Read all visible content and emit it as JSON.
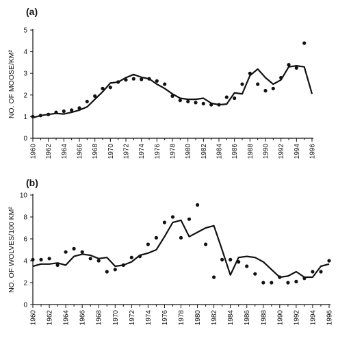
{
  "chart_data": [
    {
      "panel_label": "(a)",
      "type": "line",
      "ylabel": "NO. OF MOOSE/KM²",
      "xlabel": "",
      "xlim": [
        1960,
        1996
      ],
      "ylim": [
        0,
        5
      ],
      "yticks": [
        "0",
        "1",
        "2",
        "3",
        "4",
        "5"
      ],
      "xticks": [
        "1960",
        "1962",
        "1964",
        "1966",
        "1968",
        "1970",
        "1972",
        "1974",
        "1976",
        "1978",
        "1980",
        "1982",
        "1984",
        "1986",
        "1988",
        "1990",
        "1992",
        "1994",
        "1996"
      ],
      "grid": false,
      "legend": "none",
      "series": [
        {
          "style": "line",
          "x": [
            1960,
            1961,
            1962,
            1963,
            1964,
            1965,
            1966,
            1967,
            1968,
            1969,
            1970,
            1971,
            1972,
            1973,
            1974,
            1975,
            1976,
            1977,
            1978,
            1979,
            1980,
            1981,
            1982,
            1983,
            1984,
            1985,
            1986,
            1987,
            1988,
            1989,
            1990,
            1991,
            1992,
            1993,
            1994,
            1995,
            1996
          ],
          "y": [
            0.95,
            1.05,
            1.1,
            1.15,
            1.12,
            1.2,
            1.3,
            1.45,
            1.8,
            2.15,
            2.55,
            2.6,
            2.8,
            2.95,
            2.82,
            2.75,
            2.5,
            2.3,
            2.05,
            1.85,
            1.8,
            1.8,
            1.85,
            1.62,
            1.55,
            1.58,
            2.1,
            2.05,
            2.9,
            3.2,
            2.8,
            2.5,
            2.7,
            3.3,
            3.35,
            3.3,
            2.05
          ]
        },
        {
          "style": "points",
          "x": [
            1960,
            1961,
            1962,
            1963,
            1964,
            1965,
            1966,
            1967,
            1968,
            1969,
            1970,
            1971,
            1972,
            1973,
            1974,
            1975,
            1976,
            1977,
            1978,
            1979,
            1980,
            1981,
            1982,
            1983,
            1984,
            1985,
            1986,
            1987,
            1988,
            1989,
            1990,
            1991,
            1992,
            1993,
            1994,
            1995
          ],
          "y": [
            1.0,
            1.05,
            1.1,
            1.2,
            1.25,
            1.3,
            1.4,
            1.7,
            1.95,
            2.3,
            2.35,
            2.6,
            2.7,
            2.75,
            2.72,
            2.75,
            2.65,
            2.5,
            1.95,
            1.75,
            1.7,
            1.65,
            1.6,
            1.55,
            1.55,
            1.9,
            1.85,
            2.5,
            3.0,
            2.5,
            2.2,
            2.3,
            2.8,
            3.4,
            3.25,
            4.4
          ]
        }
      ]
    },
    {
      "panel_label": "(b)",
      "type": "line",
      "ylabel": "NO. OF WOLVES/100 KM²",
      "xlabel": "",
      "xlim": [
        1960,
        1996
      ],
      "ylim": [
        0,
        10
      ],
      "yticks": [
        "0",
        "2",
        "4",
        "6",
        "8",
        "10"
      ],
      "xticks": [
        "1960",
        "1962",
        "1964",
        "1966",
        "1968",
        "1970",
        "1972",
        "1974",
        "1976",
        "1978",
        "1980",
        "1982",
        "1984",
        "1986",
        "1988",
        "1990",
        "1992",
        "1994",
        "1996"
      ],
      "grid": false,
      "legend": "none",
      "series": [
        {
          "style": "line",
          "x": [
            1960,
            1961,
            1962,
            1963,
            1964,
            1965,
            1966,
            1967,
            1968,
            1969,
            1970,
            1971,
            1972,
            1973,
            1974,
            1975,
            1976,
            1977,
            1978,
            1979,
            1980,
            1981,
            1982,
            1983,
            1984,
            1985,
            1986,
            1987,
            1988,
            1989,
            1990,
            1991,
            1992,
            1993,
            1994,
            1995,
            1996
          ],
          "y": [
            3.5,
            3.7,
            3.7,
            3.8,
            3.6,
            4.4,
            4.6,
            4.5,
            4.2,
            4.3,
            3.5,
            3.6,
            3.9,
            4.5,
            4.7,
            5.0,
            6.2,
            7.5,
            7.7,
            6.2,
            6.6,
            7.0,
            7.2,
            5.0,
            2.7,
            4.3,
            4.4,
            4.3,
            3.9,
            3.2,
            2.5,
            2.6,
            3.0,
            2.5,
            2.5,
            3.5,
            3.7
          ]
        },
        {
          "style": "points",
          "x": [
            1960,
            1961,
            1962,
            1963,
            1964,
            1965,
            1966,
            1967,
            1968,
            1969,
            1970,
            1971,
            1972,
            1973,
            1974,
            1975,
            1976,
            1977,
            1978,
            1979,
            1980,
            1981,
            1982,
            1983,
            1984,
            1985,
            1986,
            1987,
            1988,
            1989,
            1990,
            1991,
            1992,
            1993,
            1994,
            1995,
            1996
          ],
          "y": [
            4.1,
            4.1,
            4.2,
            3.6,
            4.8,
            5.1,
            4.8,
            4.2,
            4.0,
            3.0,
            3.2,
            3.6,
            4.3,
            4.4,
            5.5,
            6.1,
            7.5,
            8.0,
            6.1,
            7.8,
            9.1,
            5.5,
            2.5,
            4.1,
            4.1,
            3.9,
            3.5,
            2.8,
            2.0,
            2.0,
            2.5,
            2.0,
            2.1,
            2.4,
            3.0,
            3.0,
            4.0
          ]
        }
      ]
    }
  ]
}
